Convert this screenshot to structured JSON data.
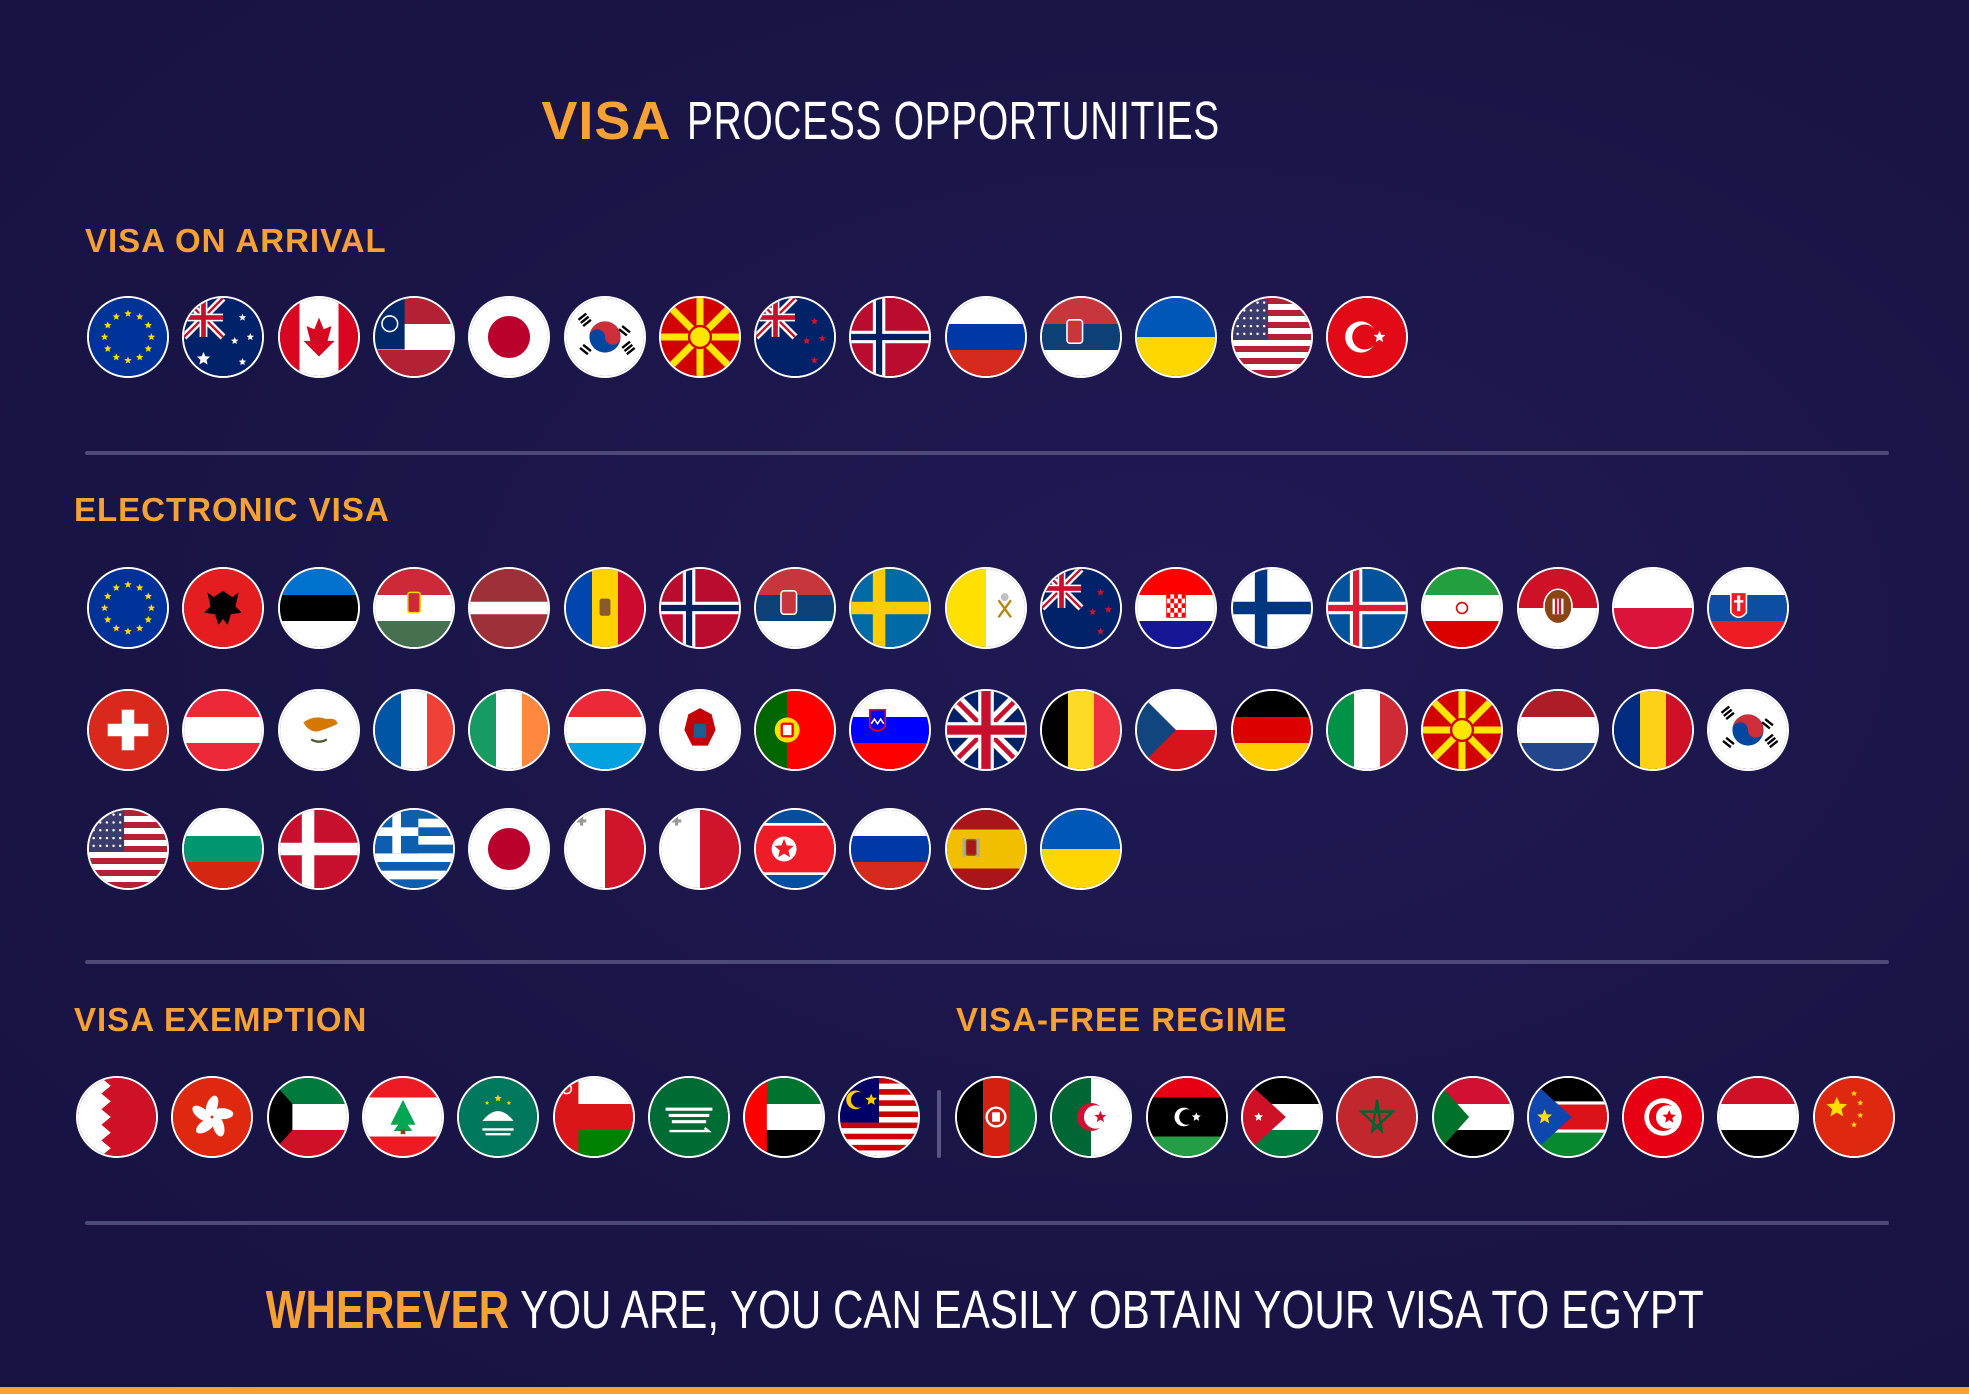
{
  "title": {
    "highlight": "VISA",
    "rest": "PROCESS OPPORTUNITIES"
  },
  "sections": {
    "arrival": {
      "label": "VISA ON ARRIVAL",
      "rows": [
        [
          "eu",
          "australia",
          "canada",
          "georgia-us",
          "japan",
          "south-korea",
          "north-macedonia",
          "new-zealand",
          "norway",
          "russia",
          "serbia",
          "ukraine",
          "usa",
          "turkey"
        ]
      ]
    },
    "electronic": {
      "label": "ELECTRONIC VISA",
      "rows": [
        [
          "eu",
          "albania",
          "estonia",
          "hungary",
          "latvia",
          "moldova",
          "norway",
          "serbia",
          "sweden",
          "vatican",
          "new-zealand",
          "croatia",
          "finland",
          "iceland",
          "iran",
          "monaco",
          "poland",
          "slovakia"
        ],
        [
          "switzerland",
          "austria",
          "cyprus",
          "france",
          "ireland",
          "luxembourg",
          "montenegro",
          "portugal",
          "slovenia",
          "united-kingdom",
          "belgium",
          "czechia",
          "germany",
          "italy",
          "north-macedonia",
          "netherlands",
          "romania",
          "south-korea"
        ],
        [
          "usa",
          "bulgaria",
          "denmark",
          "greece",
          "japan",
          "malta",
          "malta",
          "north-korea",
          "russia",
          "spain",
          "ukraine"
        ]
      ]
    },
    "exemption": {
      "label": "VISA EXEMPTION",
      "rows": [
        [
          "bahrain",
          "hong-kong",
          "kuwait",
          "lebanon",
          "macau",
          "oman",
          "saudi-arabia",
          "uae",
          "malaysia"
        ]
      ]
    },
    "visa_free": {
      "label": "VISA-FREE REGIME",
      "rows": [
        [
          "afghanistan",
          "algeria",
          "libya",
          "jordan",
          "morocco",
          "sudan",
          "south-sudan",
          "tunisia",
          "yemen",
          "china"
        ]
      ]
    }
  },
  "footer": {
    "highlight": "WHEREVER",
    "rest": "YOU ARE, YOU CAN EASILY OBTAIN YOUR VISA TO EGYPT"
  },
  "colors": {
    "accent": "#f6a133",
    "background": "#1a1547",
    "divider": "#4d4a7a"
  }
}
